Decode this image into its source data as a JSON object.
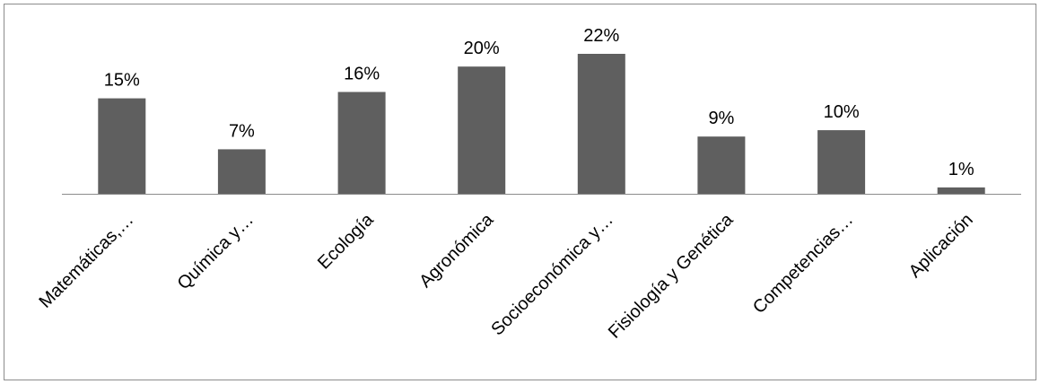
{
  "chart_data": {
    "type": "bar",
    "categories": [
      "Matemáticas,…",
      "Química y…",
      "Ecología",
      "Agronómica",
      "Socioeconómica y…",
      "Fisiología y Genética",
      "Competencias…",
      "Aplicación"
    ],
    "values": [
      15,
      7,
      16,
      20,
      22,
      9,
      10,
      1
    ],
    "value_labels": [
      "15%",
      "7%",
      "16%",
      "20%",
      "22%",
      "9%",
      "10%",
      "1%"
    ],
    "unit": "%",
    "ylim": [
      0,
      22
    ],
    "grid": false,
    "legend": "none",
    "bar_color": "#5f5f5f",
    "axis_color": "#8c8c8c"
  }
}
